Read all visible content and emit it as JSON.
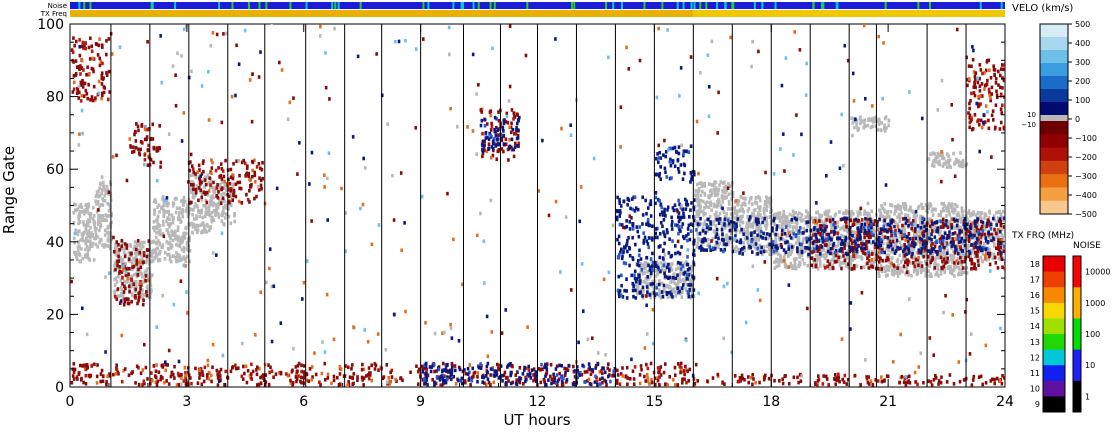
{
  "chart_data": {
    "type": "heatmap",
    "xlabel": "UT hours",
    "ylabel": "Range Gate",
    "xlim": [
      0,
      24
    ],
    "ylim": [
      0,
      100
    ],
    "x_ticks": [
      "0",
      "3",
      "6",
      "9",
      "12",
      "15",
      "18",
      "21",
      "24"
    ],
    "y_ticks": [
      "0",
      "20",
      "40",
      "60",
      "80",
      "100"
    ],
    "scan_boundaries_ut": [
      1.05,
      2.05,
      3.05,
      4.05,
      5.0,
      6.05,
      7.05,
      8.0,
      9.0,
      10.1,
      11.05,
      12.0,
      13.0,
      14.0,
      15.0,
      16.0,
      17.0,
      18.0,
      19.0,
      20.0,
      20.7,
      22.0,
      23.0
    ],
    "top_bars": {
      "noise_label": "Noise",
      "txfreq_label": "TX Freq",
      "noise_color": "#1c1cd8",
      "txfreq_color_0_16": "#e8b000",
      "txfreq_color_16_24": "#f0c800"
    },
    "velocity_scale": {
      "title": "VELO (km/s)",
      "tick_labels": [
        "500",
        "400",
        "300",
        "200",
        "100",
        "0",
        "−100",
        "−200",
        "−300",
        "−400",
        "−500"
      ],
      "ground_scatter_labels": [
        "10",
        "−10"
      ],
      "colors_positive": [
        "#d8ecf8",
        "#a8d8f0",
        "#6fc0e8",
        "#3a9ee0",
        "#1a6cc8",
        "#0a3a9c",
        "#000a70"
      ],
      "colors_negative": [
        "#6e0000",
        "#900000",
        "#b01008",
        "#d04010",
        "#e87010",
        "#f4a040",
        "#f8c890"
      ],
      "ground_scatter_color": "#b8b8b8"
    },
    "txfreq_scale": {
      "title": "TX FRQ (MHz)",
      "labels": [
        "18",
        "17",
        "16",
        "15",
        "14",
        "13",
        "12",
        "11",
        "10",
        "9"
      ],
      "colors": [
        "#e80000",
        "#f04000",
        "#f88800",
        "#f8d800",
        "#a0e000",
        "#20d800",
        "#00c8d8",
        "#1020f0",
        "#6010a0",
        "#000000"
      ]
    },
    "noise_scale": {
      "title": "NOISE",
      "labels": [
        "10000",
        "1000",
        "100",
        "10",
        "1"
      ],
      "colors": [
        "#ff0000",
        "#ffb000",
        "#00dd00",
        "#2020ff",
        "#000000"
      ]
    },
    "series": [
      {
        "color": "gray",
        "points": [
          [
            0.05,
            0.6,
            34,
            50
          ],
          [
            0.6,
            1.05,
            38,
            56
          ],
          [
            1.1,
            2.1,
            24,
            40
          ],
          [
            2.1,
            3.05,
            34,
            52
          ],
          [
            3.05,
            3.6,
            42,
            58
          ],
          [
            3.6,
            4.2,
            44,
            56
          ],
          [
            16.0,
            17.0,
            38,
            56
          ],
          [
            17.0,
            18.0,
            36,
            52
          ],
          [
            18.0,
            19.0,
            32,
            48
          ],
          [
            19.0,
            20.7,
            32,
            48
          ],
          [
            20.7,
            22.0,
            30,
            50
          ],
          [
            22.0,
            23.0,
            30,
            50
          ],
          [
            23.0,
            24.0,
            34,
            48
          ],
          [
            14.5,
            16.0,
            24,
            34
          ],
          [
            22.0,
            23.0,
            60,
            64
          ],
          [
            20.0,
            21.0,
            70,
            74
          ]
        ]
      },
      {
        "color": "darkred",
        "points": [
          [
            1.1,
            2.0,
            22,
            40
          ],
          [
            0.0,
            1.0,
            78,
            96
          ],
          [
            3.0,
            5.0,
            50,
            62
          ],
          [
            10.5,
            11.5,
            62,
            76
          ],
          [
            0.0,
            16.0,
            0,
            6
          ],
          [
            16.0,
            24.0,
            0,
            3
          ],
          [
            19.0,
            24.0,
            32,
            46
          ],
          [
            23.0,
            24.0,
            70,
            90
          ],
          [
            1.5,
            2.3,
            60,
            72
          ]
        ]
      },
      {
        "color": "navy",
        "points": [
          [
            14.0,
            16.0,
            24,
            52
          ],
          [
            15.0,
            16.0,
            56,
            66
          ],
          [
            9.0,
            14.0,
            0,
            6
          ],
          [
            16.0,
            24.0,
            36,
            46
          ],
          [
            10.5,
            11.5,
            64,
            74
          ]
        ]
      }
    ],
    "grid": false
  }
}
